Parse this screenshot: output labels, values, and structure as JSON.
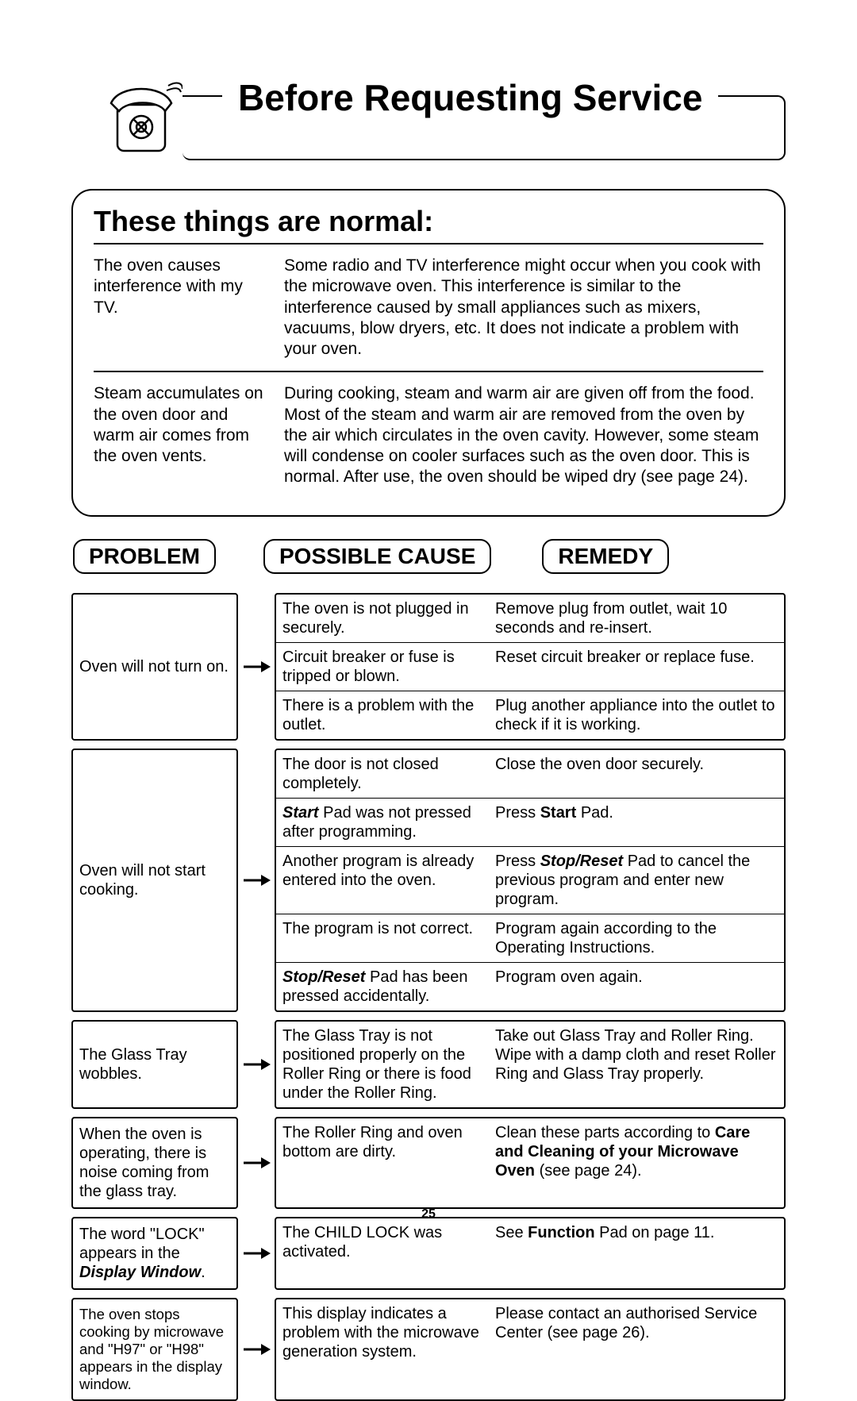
{
  "title": "Before Requesting Service",
  "page_number": "25",
  "normal": {
    "heading": "These things are normal:",
    "rows": [
      {
        "left": "The oven causes interference with my TV.",
        "right": "Some radio and TV interference might occur when you cook with the microwave oven. This interference is similar to the interference caused by small appliances such as mixers, vacuums, blow dryers, etc. It does not indicate a problem with your oven."
      },
      {
        "left": "Steam accumulates on the oven door and warm air comes from the oven vents.",
        "right": "During cooking, steam and warm air are given off from the food. Most of the steam and warm air are removed from the oven by the air which circulates in the oven cavity. However, some steam will condense on cooler surfaces such as the oven door. This is normal. After use, the oven should be wiped dry (see page 24)."
      }
    ]
  },
  "headers": {
    "problem": "PROBLEM",
    "cause": "POSSIBLE CAUSE",
    "remedy": "REMEDY"
  },
  "ts": [
    {
      "problem_html": "Oven will not turn on.",
      "lines": [
        {
          "cause_html": "The oven is not plugged in securely.",
          "remedy_html": "Remove plug from outlet, wait 10 seconds and re-insert."
        },
        {
          "cause_html": "Circuit breaker or fuse is tripped or blown.",
          "remedy_html": "Reset circuit breaker or replace fuse."
        },
        {
          "cause_html": "There is a problem with the outlet.",
          "remedy_html": "Plug another appliance into the outlet to check if it is working."
        }
      ]
    },
    {
      "problem_html": "Oven will not start cooking.",
      "lines": [
        {
          "cause_html": "The door is not closed completely.",
          "remedy_html": "Close the oven door securely."
        },
        {
          "cause_html": "<span class='bi'>Start</span> Pad was not pressed after programming.",
          "remedy_html": "Press <span class='b'>Start</span> Pad."
        },
        {
          "cause_html": "Another program is already entered into the oven.",
          "remedy_html": "Press <span class='bi'>Stop/Reset</span> Pad to cancel the previous program and enter new program."
        },
        {
          "cause_html": "The program is not correct.",
          "remedy_html": "Program again according to the Operating Instructions."
        },
        {
          "cause_html": "<span class='bi'>Stop/Reset</span> Pad has been pressed accidentally.",
          "remedy_html": "Program oven again."
        }
      ]
    },
    {
      "problem_html": "The Glass Tray wobbles.",
      "lines": [
        {
          "cause_html": "The Glass Tray is not positioned properly on the Roller Ring or there is food under the Roller Ring.",
          "remedy_html": "Take out Glass Tray and Roller Ring. Wipe with a damp cloth and reset Roller Ring and Glass Tray properly."
        }
      ]
    },
    {
      "problem_html": "When the oven is operating, there is noise coming from the glass tray.",
      "lines": [
        {
          "cause_html": "The Roller Ring and oven bottom are dirty.",
          "remedy_html": "Clean these parts according to <span class='b'>Care and Cleaning of your Microwave Oven</span> (see page 24)."
        }
      ]
    },
    {
      "problem_html": "The word \"LOCK\" appears in the <span class='bi'>Display Window</span>.",
      "lines": [
        {
          "cause_html": "The CHILD LOCK was activated.",
          "remedy_html": "See <span class='b'>Function</span> Pad on page 11."
        }
      ]
    },
    {
      "problem_html": "The oven stops cooking by microwave and \"H97\" or \"H98\" appears in the display window.",
      "problem_fs": "18.5px",
      "lines": [
        {
          "cause_html": "This display indicates a problem with the microwave generation system.",
          "remedy_html": "Please contact an authorised Service Center (see page 26)."
        }
      ]
    }
  ]
}
